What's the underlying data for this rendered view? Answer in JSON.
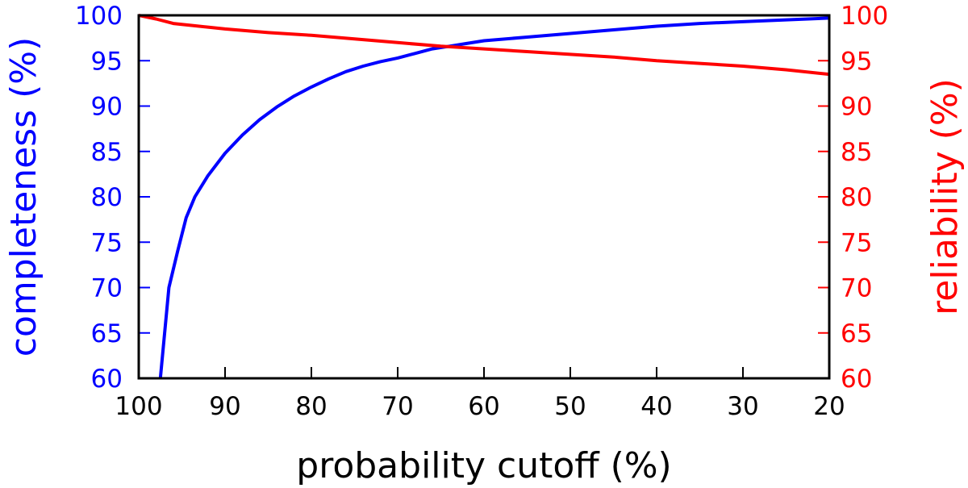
{
  "chart_data": {
    "type": "line",
    "title": "",
    "xlabel": "probability cutoff (%)",
    "ylabel_left": "completeness (%)",
    "ylabel_right": "reliability (%)",
    "xlim": [
      100,
      20
    ],
    "ylim_left": [
      60,
      100
    ],
    "ylim_right": [
      60,
      100
    ],
    "x_ticks": [
      100,
      90,
      80,
      70,
      60,
      50,
      40,
      30,
      20
    ],
    "y_ticks_left": [
      60,
      65,
      70,
      75,
      80,
      85,
      90,
      95,
      100
    ],
    "y_ticks_right": [
      60,
      65,
      70,
      75,
      80,
      85,
      90,
      95,
      100
    ],
    "grid": false,
    "legend": "none",
    "colors": {
      "left_axis": "#0000ff",
      "right_axis": "#ff0000",
      "frame": "#000000"
    },
    "series": [
      {
        "axis": "left",
        "color": "#0000ff",
        "x": [
          97.5,
          96.5,
          95.5,
          94.5,
          93.5,
          92,
          90,
          88,
          86,
          84,
          82,
          80,
          78,
          76,
          74,
          72,
          70,
          68,
          66,
          64,
          62,
          60,
          55,
          50,
          45,
          40,
          35,
          30,
          25,
          20
        ],
        "y": [
          60,
          70,
          74,
          77.7,
          80,
          82.3,
          84.8,
          86.8,
          88.5,
          89.9,
          91.1,
          92.1,
          93.0,
          93.8,
          94.4,
          94.9,
          95.3,
          95.8,
          96.3,
          96.6,
          96.9,
          97.2,
          97.6,
          98.0,
          98.4,
          98.8,
          99.1,
          99.3,
          99.5,
          99.7
        ]
      },
      {
        "axis": "right",
        "color": "#ff0000",
        "x": [
          100,
          98,
          96,
          94,
          92,
          90,
          85,
          80,
          75,
          70,
          65,
          60,
          55,
          50,
          45,
          40,
          35,
          30,
          25,
          20
        ],
        "y": [
          100,
          99.6,
          99.1,
          98.9,
          98.7,
          98.5,
          98.1,
          97.8,
          97.4,
          97.0,
          96.6,
          96.3,
          96.0,
          95.7,
          95.4,
          95.0,
          94.7,
          94.4,
          94.0,
          93.5
        ]
      }
    ]
  }
}
